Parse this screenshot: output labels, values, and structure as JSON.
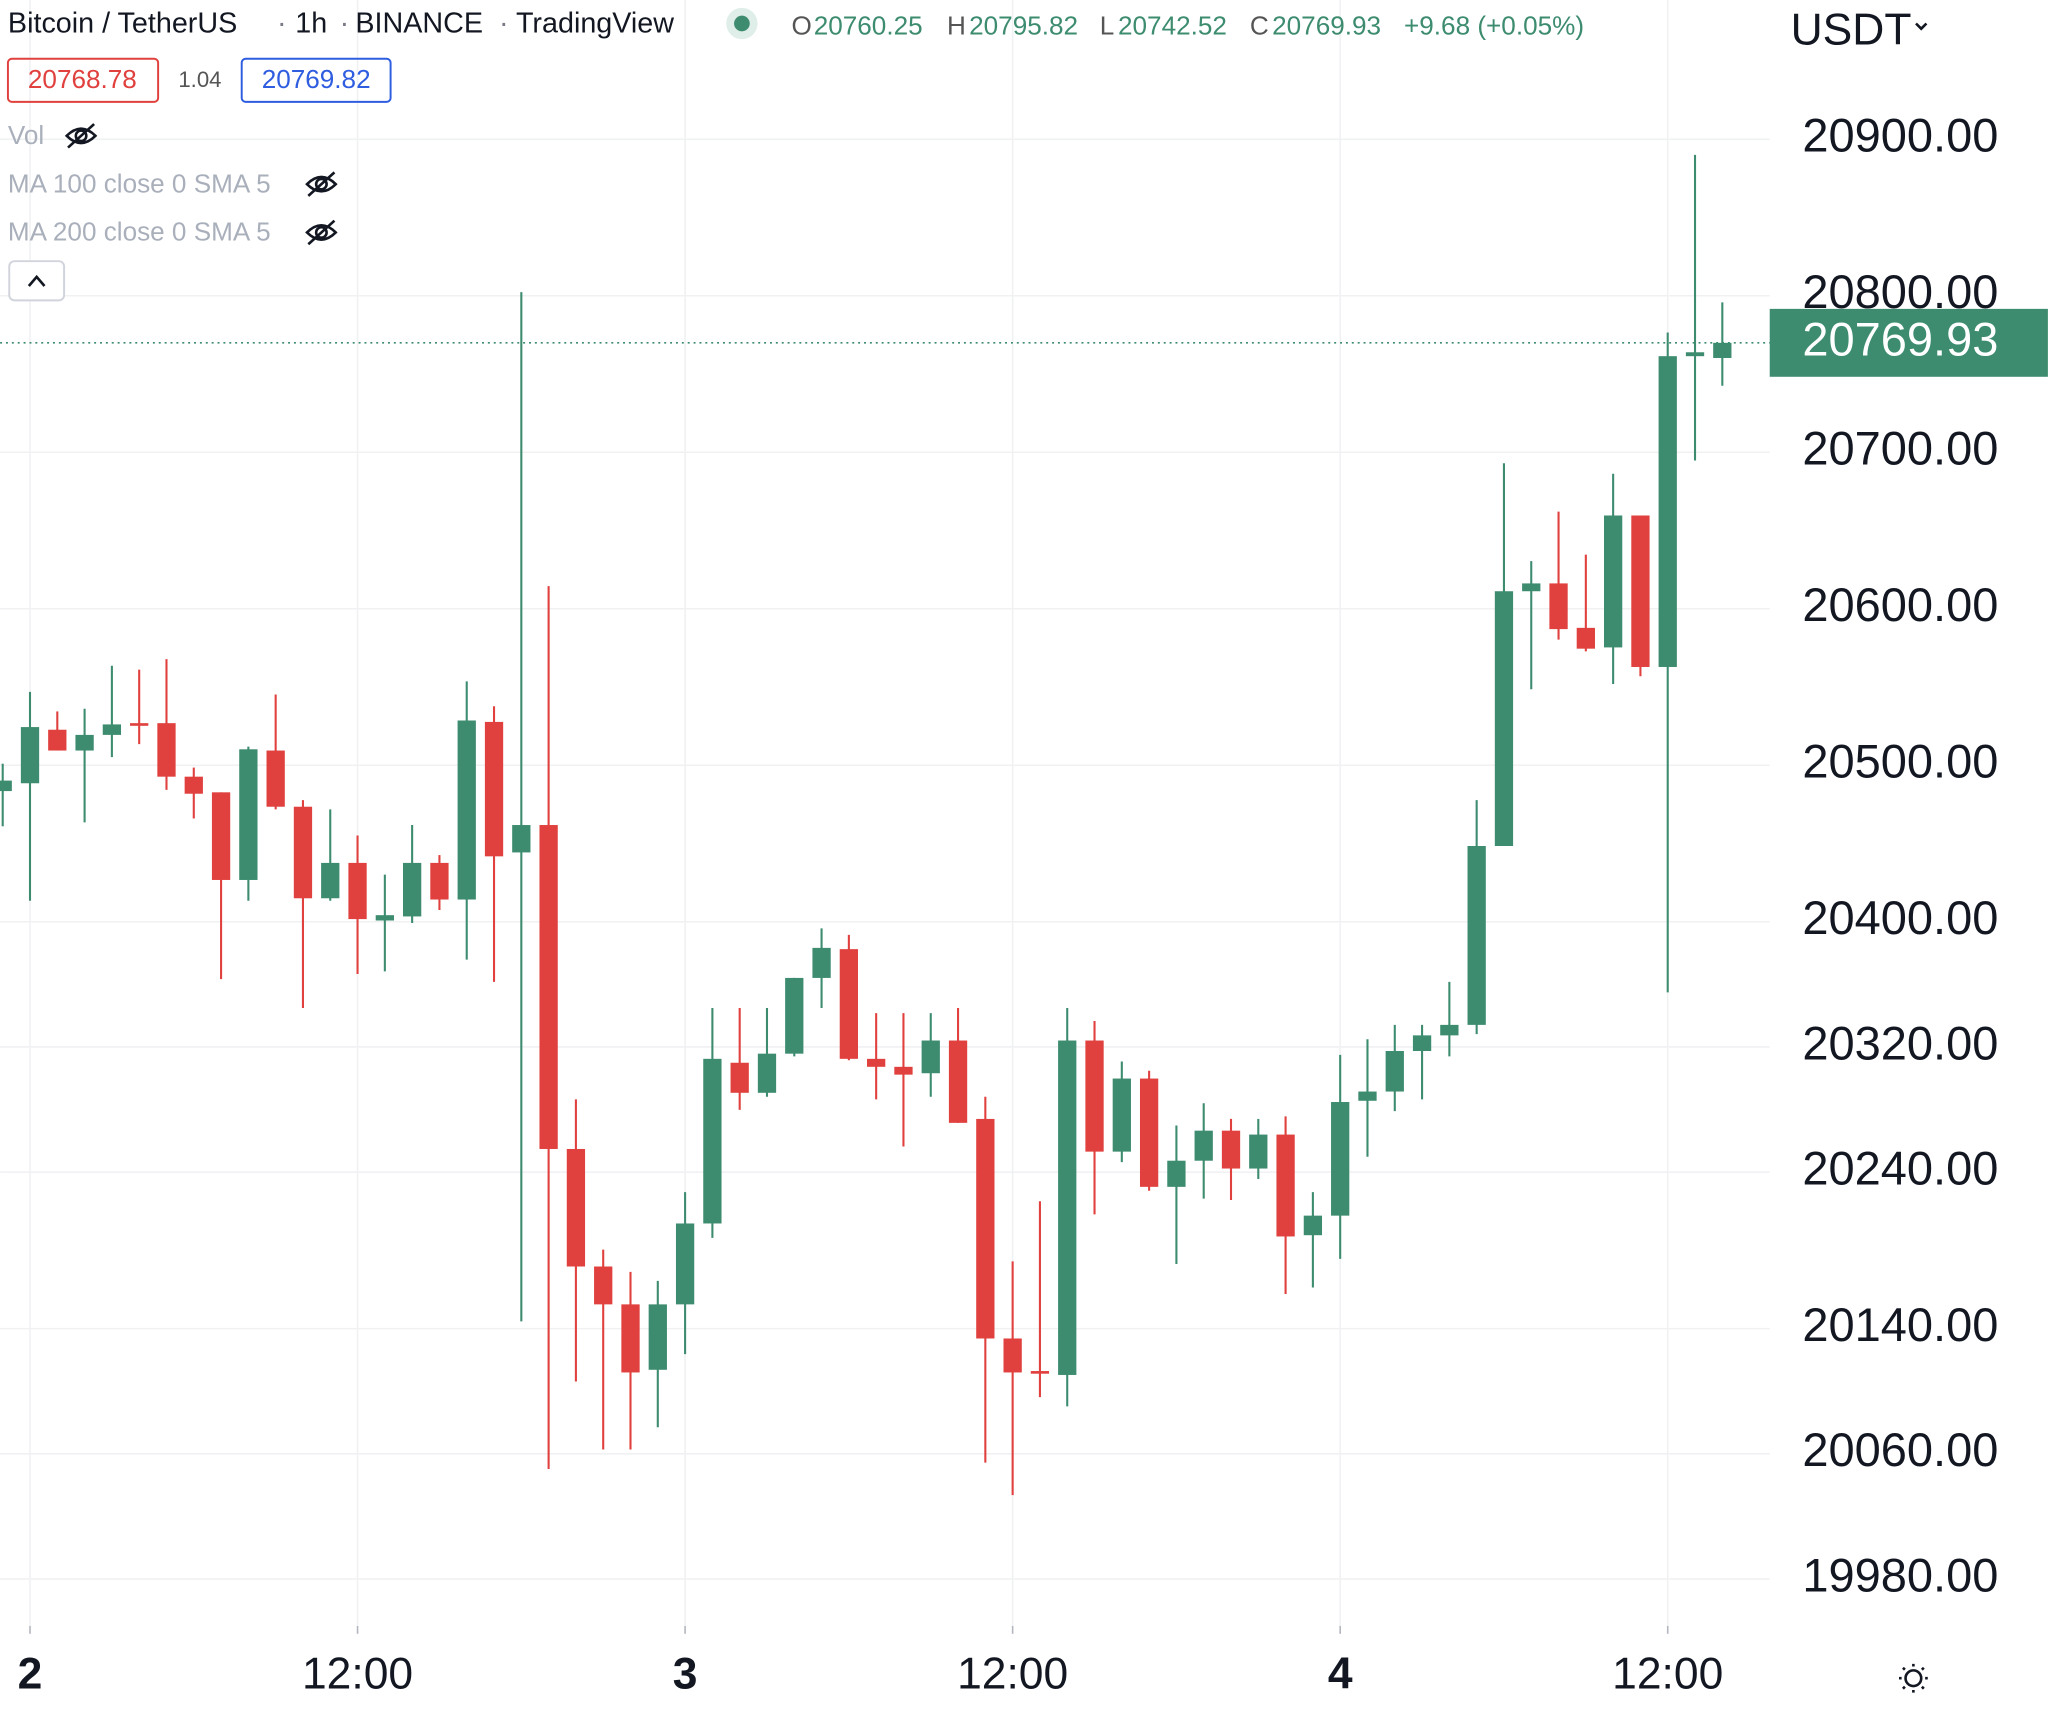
{
  "header": {
    "symbol": "Bitcoin / TetherUS",
    "separator": "·",
    "interval": "1h",
    "exchange": "BINANCE",
    "source": "TradingView",
    "ohlc_labels": [
      "O",
      "H",
      "L",
      "C"
    ],
    "change": "+9.68 (+0.05%)",
    "bid": 20768.78,
    "spread": 1.04,
    "ask": 20769.82,
    "indicators": [
      "Vol",
      "MA 100 close 0 SMA 5",
      "MA 200 close 0 SMA 5"
    ]
  },
  "chart_data": {
    "type": "candlestick",
    "currency": "USDT",
    "up_color": "#3d8c6f",
    "down_color": "#e0413e",
    "grid": true,
    "categories": [
      null,
      "2",
      null,
      null,
      null,
      null,
      null,
      null,
      null,
      null,
      null,
      null,
      null,
      "12:00",
      null,
      null,
      null,
      null,
      null,
      null,
      null,
      null,
      null,
      null,
      null,
      "3",
      null,
      null,
      null,
      null,
      null,
      null,
      null,
      null,
      null,
      null,
      null,
      "12:00",
      null,
      null,
      null,
      null,
      null,
      null,
      null,
      null,
      null,
      null,
      null,
      "4",
      null,
      null,
      null,
      null,
      null,
      null,
      null,
      null,
      null,
      null,
      null,
      "12:00",
      null,
      null
    ],
    "open": [
      20483.5,
      20488.5,
      20522.7,
      20509.4,
      20519.4,
      20526.9,
      20526.9,
      20492.7,
      20482.7,
      20426.7,
      20509.4,
      20473.5,
      20415.0,
      20437.6,
      20400.8,
      20403.4,
      20437.6,
      20414.2,
      20527.7,
      20444.3,
      20461.8,
      20254.8,
      20179.7,
      20155.5,
      20113.7,
      20155.5,
      20207.2,
      20309.9,
      20290.7,
      20315.7,
      20364.1,
      20382.5,
      20312.4,
      20307.3,
      20303.2,
      20324.1,
      20274.0,
      20133.7,
      20112.9,
      20110.4,
      20324.1,
      20253.1,
      20299.8,
      20230.6,
      20247.3,
      20266.5,
      20242.3,
      20264.0,
      20199.7,
      20212.2,
      20285.6,
      20291.5,
      20317.4,
      20327.4,
      20334.1,
      20448.4,
      20611.2,
      20616.2,
      20587.8,
      20575.3,
      20659.6,
      20562.8,
      20761.4,
      20760.25
    ],
    "high": [
      20501.0,
      20546.9,
      20534.4,
      20536.1,
      20563.6,
      20561.1,
      20567.8,
      20498.5,
      20482.7,
      20511.9,
      20545.2,
      20477.7,
      20471.8,
      20455.1,
      20430.1,
      20461.8,
      20442.6,
      20553.6,
      20537.7,
      20802.3,
      20614.5,
      20286.5,
      20190.5,
      20176.3,
      20170.5,
      20227.2,
      20344.9,
      20344.9,
      20344.9,
      20364.1,
      20395.8,
      20391.6,
      20341.6,
      20341.6,
      20341.6,
      20344.9,
      20288.2,
      20183.0,
      20221.4,
      20344.9,
      20336.6,
      20310.7,
      20304.8,
      20269.8,
      20284.0,
      20274.0,
      20274.0,
      20275.6,
      20227.2,
      20314.9,
      20324.9,
      20334.1,
      20334.1,
      20361.6,
      20477.7,
      20693.0,
      20630.4,
      20662.1,
      20634.6,
      20686.3,
      20659.6,
      20776.5,
      20890.0,
      20795.82
    ],
    "low": [
      20461.0,
      20413.4,
      20509.4,
      20463.5,
      20505.2,
      20513.5,
      20484.3,
      20466.0,
      20363.3,
      20413.4,
      20471.8,
      20344.9,
      20413.4,
      20366.6,
      20368.3,
      20399.2,
      20407.5,
      20375.8,
      20361.6,
      20144.6,
      20050.3,
      20106.2,
      20062.8,
      20062.8,
      20077.0,
      20123.7,
      20198.0,
      20279.8,
      20288.2,
      20314.0,
      20344.9,
      20311.5,
      20286.5,
      20256.4,
      20288.2,
      20271.5,
      20054.4,
      20033.6,
      20096.2,
      20090.3,
      20213.0,
      20246.4,
      20228.1,
      20181.3,
      20223.1,
      20222.2,
      20235.6,
      20162.1,
      20166.3,
      20184.6,
      20249.8,
      20279.0,
      20286.5,
      20314.0,
      20328.2,
      20448.4,
      20548.6,
      20580.3,
      20572.8,
      20551.9,
      20556.9,
      20354.9,
      20694.7,
      20742.52
    ],
    "close": [
      20490.2,
      20524.4,
      20509.4,
      20519.4,
      20526.1,
      20525.2,
      20492.7,
      20481.8,
      20426.7,
      20510.2,
      20473.5,
      20415.0,
      20437.6,
      20401.7,
      20404.2,
      20437.6,
      20414.2,
      20528.6,
      20441.8,
      20461.8,
      20254.8,
      20179.7,
      20155.5,
      20112.0,
      20155.5,
      20207.2,
      20312.4,
      20290.7,
      20315.7,
      20364.1,
      20383.3,
      20312.4,
      20307.3,
      20302.3,
      20324.1,
      20271.5,
      20133.7,
      20112.0,
      20111.2,
      20324.1,
      20253.1,
      20299.8,
      20230.6,
      20247.3,
      20266.5,
      20242.3,
      20264.0,
      20198.9,
      20212.2,
      20284.8,
      20291.5,
      20317.4,
      20327.4,
      20334.1,
      20448.4,
      20611.2,
      20616.2,
      20587.0,
      20574.5,
      20659.6,
      20562.8,
      20761.4,
      20763.9,
      20769.93
    ],
    "ylim": [
      19950,
      20989
    ],
    "yticks": [
      {
        "value": 20900,
        "label": "20900.00"
      },
      {
        "value": 20800,
        "label": "20800.00"
      },
      {
        "value": 20700,
        "label": "20700.00"
      },
      {
        "value": 20600,
        "label": "20600.00"
      },
      {
        "value": 20500,
        "label": "20500.00"
      },
      {
        "value": 20400,
        "label": "20400.00"
      },
      {
        "value": 20320,
        "label": "20320.00"
      },
      {
        "value": 20240,
        "label": "20240.00"
      },
      {
        "value": 20140,
        "label": "20140.00"
      },
      {
        "value": 20060,
        "label": "20060.00"
      },
      {
        "value": 19980,
        "label": "19980.00"
      }
    ]
  }
}
